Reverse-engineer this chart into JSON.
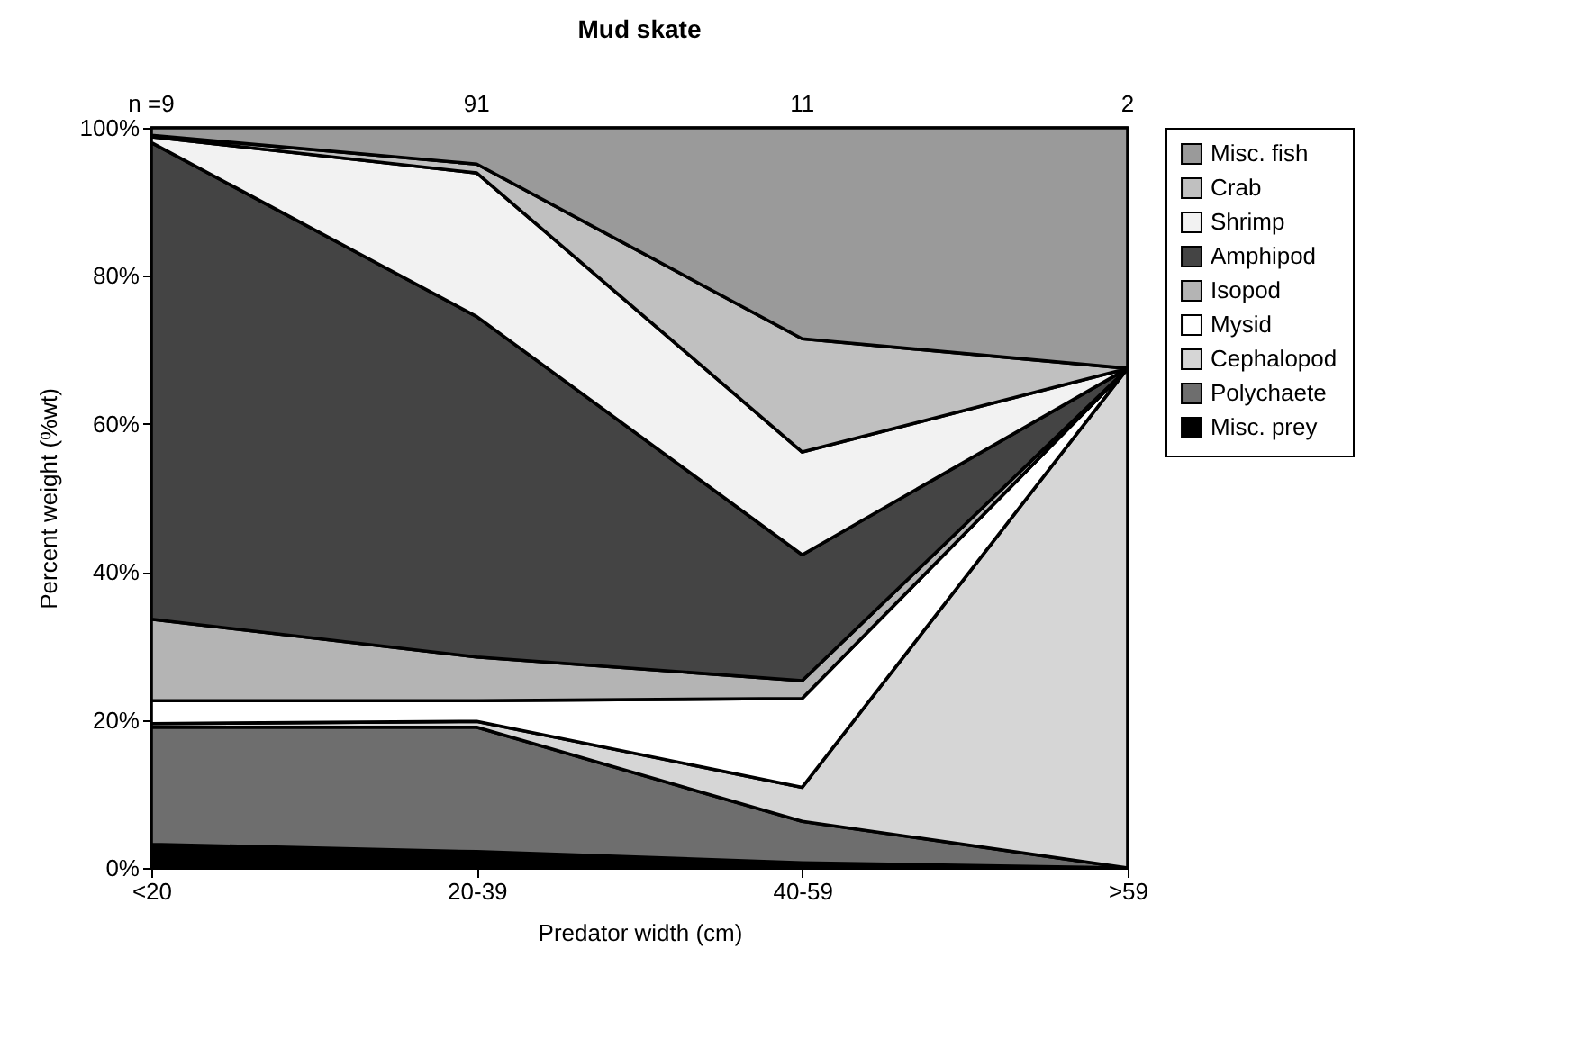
{
  "chart_data": {
    "type": "area",
    "stacked": true,
    "title": "Mud skate",
    "xlabel": "Predator width (cm)",
    "ylabel": "Percent weight (%wt)",
    "categories": [
      "<20",
      "20-39",
      "40-59",
      ">59"
    ],
    "series": [
      {
        "name": "Misc. prey",
        "color": "#000000",
        "values": [
          3.2,
          2.2,
          0.7,
          0
        ]
      },
      {
        "name": "Polychaete",
        "color": "#6e6e6e",
        "values": [
          15.8,
          16.8,
          5.6,
          0
        ]
      },
      {
        "name": "Cephalopod",
        "color": "#d6d6d6",
        "values": [
          0.5,
          0.8,
          4.6,
          67.5
        ]
      },
      {
        "name": "Mysid",
        "color": "#ffffff",
        "values": [
          3.1,
          2.8,
          12.0,
          0
        ]
      },
      {
        "name": "Isopod",
        "color": "#b4b4b4",
        "values": [
          11.0,
          5.9,
          2.4,
          0
        ]
      },
      {
        "name": "Amphipod",
        "color": "#444444",
        "values": [
          64.4,
          46.0,
          17.0,
          0
        ]
      },
      {
        "name": "Shrimp",
        "color": "#f2f2f2",
        "values": [
          0.8,
          19.4,
          13.9,
          0
        ]
      },
      {
        "name": "Crab",
        "color": "#c0c0c0",
        "values": [
          0.2,
          1.2,
          15.3,
          0
        ]
      },
      {
        "name": "Misc. fish",
        "color": "#9a9a9a",
        "values": [
          1.0,
          4.9,
          28.5,
          32.5
        ]
      }
    ],
    "ylim": [
      0,
      100
    ],
    "yticks": [
      {
        "value": 0,
        "label": "0%"
      },
      {
        "value": 20,
        "label": "20%"
      },
      {
        "value": 40,
        "label": "40%"
      },
      {
        "value": 60,
        "label": "60%"
      },
      {
        "value": 80,
        "label": "80%"
      },
      {
        "value": 100,
        "label": "100%"
      }
    ],
    "annotations": [
      "n =9",
      "91",
      "11",
      "2"
    ],
    "grid": false,
    "legend": "right"
  }
}
